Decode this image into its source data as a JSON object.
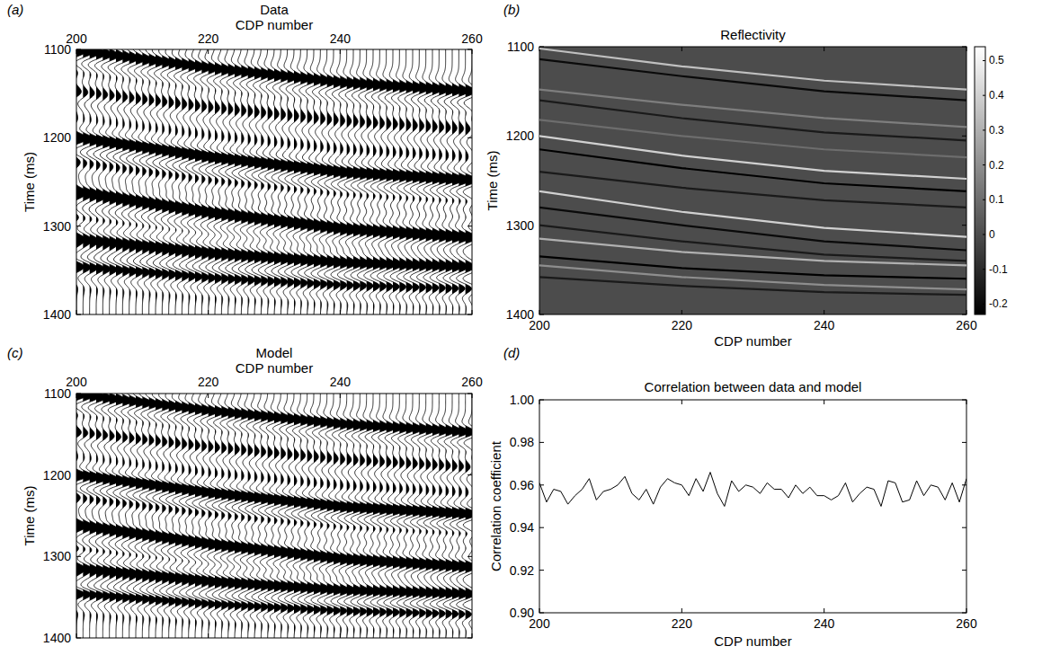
{
  "chart_data": [
    {
      "type": "wiggle",
      "panel_label": "(a)",
      "title": "Data",
      "x_label": "CDP number",
      "y_label": "Time (ms)",
      "xlim": [
        200,
        260
      ],
      "ylim": [
        1100,
        1400
      ],
      "xticks": [
        200,
        220,
        240,
        260
      ],
      "yticks": [
        1100,
        1200,
        1300,
        1400
      ],
      "x": [
        200,
        201,
        202,
        203,
        204,
        205,
        206,
        207,
        208,
        209,
        210,
        211,
        212,
        213,
        214,
        215,
        216,
        217,
        218,
        219,
        220,
        221,
        222,
        223,
        224,
        225,
        226,
        227,
        228,
        229,
        230,
        231,
        232,
        233,
        234,
        235,
        236,
        237,
        238,
        239,
        240,
        241,
        242,
        243,
        244,
        245,
        246,
        247,
        248,
        249,
        250,
        251,
        252,
        253,
        254,
        255,
        256,
        257,
        258,
        259,
        260
      ]
    },
    {
      "type": "heatmap",
      "panel_label": "(b)",
      "title": "Reflectivity",
      "x_label": "CDP number",
      "y_label": "Time (ms)",
      "xlim": [
        200,
        260
      ],
      "ylim": [
        1100,
        1400
      ],
      "xticks": [
        200,
        220,
        240,
        260
      ],
      "yticks": [
        1100,
        1200,
        1300,
        1400
      ],
      "colorbar": {
        "lim": [
          -0.23,
          0.54
        ],
        "ticks": [
          -0.2,
          -0.1,
          0,
          0.1,
          0.2,
          0.3,
          0.4,
          0.5
        ]
      },
      "reflectors": [
        {
          "x": [
            200,
            220,
            240,
            260
          ],
          "time": [
            1102,
            1122,
            1138,
            1148
          ],
          "coefficient": 0.35
        },
        {
          "x": [
            200,
            220,
            240,
            260
          ],
          "time": [
            1114,
            1133,
            1150,
            1160
          ],
          "coefficient": -0.2
        },
        {
          "x": [
            200,
            220,
            240,
            260
          ],
          "time": [
            1148,
            1165,
            1180,
            1190
          ],
          "coefficient": 0.15
        },
        {
          "x": [
            200,
            220,
            240,
            260
          ],
          "time": [
            1160,
            1180,
            1196,
            1205
          ],
          "coefficient": -0.15
        },
        {
          "x": [
            200,
            220,
            240,
            260
          ],
          "time": [
            1182,
            1200,
            1215,
            1224
          ],
          "coefficient": 0.1
        },
        {
          "x": [
            200,
            220,
            240,
            260
          ],
          "time": [
            1200,
            1222,
            1239,
            1248
          ],
          "coefficient": 0.4
        },
        {
          "x": [
            200,
            220,
            240,
            260
          ],
          "time": [
            1215,
            1236,
            1253,
            1262
          ],
          "coefficient": -0.25
        },
        {
          "x": [
            200,
            220,
            240,
            260
          ],
          "time": [
            1240,
            1258,
            1272,
            1280
          ],
          "coefficient": -0.15
        },
        {
          "x": [
            200,
            220,
            240,
            260
          ],
          "time": [
            1262,
            1285,
            1303,
            1313
          ],
          "coefficient": 0.4
        },
        {
          "x": [
            200,
            220,
            240,
            260
          ],
          "time": [
            1280,
            1300,
            1318,
            1328
          ],
          "coefficient": -0.2
        },
        {
          "x": [
            200,
            220,
            240,
            260
          ],
          "time": [
            1300,
            1318,
            1333,
            1340
          ],
          "coefficient": -0.15
        },
        {
          "x": [
            200,
            220,
            240,
            260
          ],
          "time": [
            1315,
            1330,
            1340,
            1345
          ],
          "coefficient": 0.3
        },
        {
          "x": [
            200,
            220,
            240,
            260
          ],
          "time": [
            1335,
            1348,
            1356,
            1360
          ],
          "coefficient": -0.25
        },
        {
          "x": [
            200,
            220,
            240,
            260
          ],
          "time": [
            1345,
            1358,
            1367,
            1372
          ],
          "coefficient": 0.2
        },
        {
          "x": [
            200,
            220,
            240,
            260
          ],
          "time": [
            1358,
            1368,
            1375,
            1378
          ],
          "coefficient": -0.15
        }
      ]
    },
    {
      "type": "wiggle",
      "panel_label": "(c)",
      "title": "Model",
      "x_label": "CDP number",
      "y_label": "Time (ms)",
      "xlim": [
        200,
        260
      ],
      "ylim": [
        1100,
        1400
      ],
      "xticks": [
        200,
        220,
        240,
        260
      ],
      "yticks": [
        1100,
        1200,
        1300,
        1400
      ],
      "x": [
        200,
        201,
        202,
        203,
        204,
        205,
        206,
        207,
        208,
        209,
        210,
        211,
        212,
        213,
        214,
        215,
        216,
        217,
        218,
        219,
        220,
        221,
        222,
        223,
        224,
        225,
        226,
        227,
        228,
        229,
        230,
        231,
        232,
        233,
        234,
        235,
        236,
        237,
        238,
        239,
        240,
        241,
        242,
        243,
        244,
        245,
        246,
        247,
        248,
        249,
        250,
        251,
        252,
        253,
        254,
        255,
        256,
        257,
        258,
        259,
        260
      ]
    },
    {
      "type": "line",
      "panel_label": "(d)",
      "title": "Correlation between data and model",
      "x_label": "CDP number",
      "y_label": "Correlation coefficient",
      "xlim": [
        200,
        260
      ],
      "ylim": [
        0.9,
        1.0
      ],
      "xticks": [
        200,
        220,
        240,
        260
      ],
      "yticks": [
        {
          "value": 0.9,
          "label": "0.90"
        },
        0.92,
        0.94,
        0.96,
        0.98,
        {
          "value": 1.0,
          "label": "1.00"
        }
      ],
      "color": "#000000",
      "x": [
        200,
        201,
        202,
        203,
        204,
        205,
        206,
        207,
        208,
        209,
        210,
        211,
        212,
        213,
        214,
        215,
        216,
        217,
        218,
        219,
        220,
        221,
        222,
        223,
        224,
        225,
        226,
        227,
        228,
        229,
        230,
        231,
        232,
        233,
        234,
        235,
        236,
        237,
        238,
        239,
        240,
        241,
        242,
        243,
        244,
        245,
        246,
        247,
        248,
        249,
        250,
        251,
        252,
        253,
        254,
        255,
        256,
        257,
        258,
        259,
        260
      ],
      "values": [
        0.961,
        0.952,
        0.958,
        0.957,
        0.951,
        0.955,
        0.958,
        0.963,
        0.953,
        0.957,
        0.958,
        0.96,
        0.964,
        0.956,
        0.953,
        0.958,
        0.951,
        0.959,
        0.963,
        0.961,
        0.96,
        0.955,
        0.963,
        0.957,
        0.966,
        0.956,
        0.95,
        0.962,
        0.957,
        0.96,
        0.959,
        0.956,
        0.961,
        0.958,
        0.958,
        0.954,
        0.96,
        0.956,
        0.959,
        0.955,
        0.955,
        0.953,
        0.955,
        0.961,
        0.952,
        0.956,
        0.959,
        0.958,
        0.95,
        0.962,
        0.961,
        0.952,
        0.953,
        0.962,
        0.955,
        0.96,
        0.959,
        0.953,
        0.961,
        0.952,
        0.963
      ]
    }
  ]
}
